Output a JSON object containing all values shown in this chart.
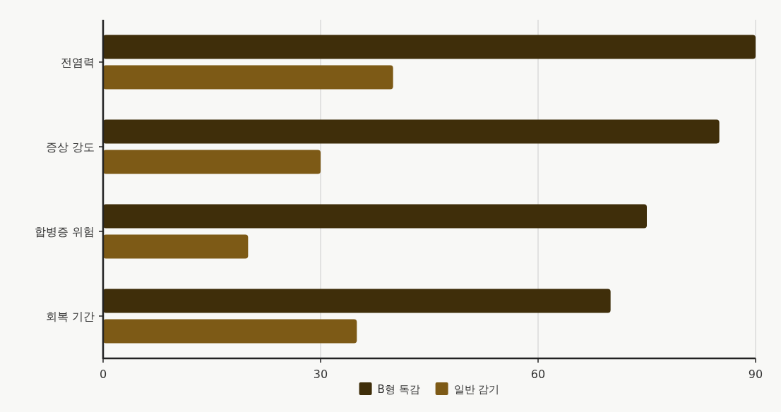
{
  "chart_data": {
    "type": "bar",
    "orientation": "horizontal",
    "categories": [
      "전염력",
      "증상 강도",
      "합병증 위험",
      "회복 기간"
    ],
    "series": [
      {
        "name": "B형 독감",
        "color": "#3f2e0a",
        "values": [
          90,
          85,
          75,
          70
        ]
      },
      {
        "name": "일반 감기",
        "color": "#7d5a16",
        "values": [
          40,
          30,
          20,
          35
        ]
      }
    ],
    "xlim": [
      0,
      90
    ],
    "xticks": [
      0,
      30,
      60,
      90
    ],
    "grid": "x",
    "legend": "bottom"
  }
}
